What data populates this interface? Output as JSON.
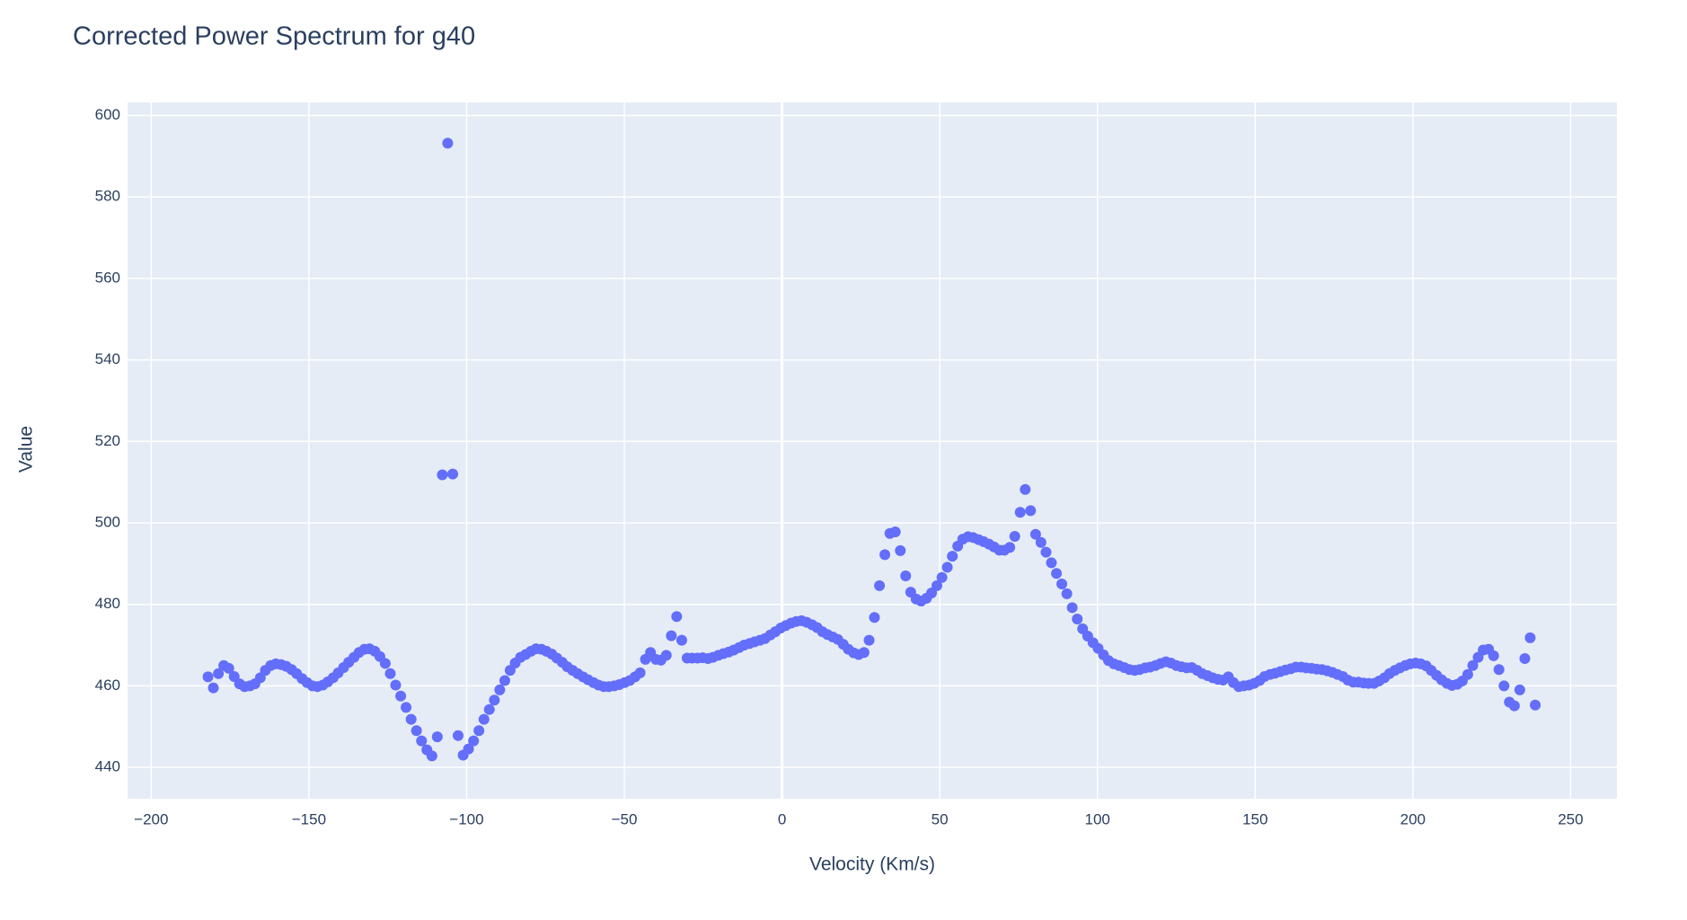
{
  "chart_data": {
    "type": "scatter",
    "title": "Corrected Power Spectrum for g40",
    "x_label": "Velocity (Km/s)",
    "y_label": "Value",
    "color": "#636efa",
    "grid": true,
    "xlim": [
      -207.5,
      264.7
    ],
    "ylim": [
      432.3,
      603.2
    ],
    "xticks": [
      {
        "value": -200,
        "label": "−200"
      },
      {
        "value": -150,
        "label": "−150"
      },
      {
        "value": -100,
        "label": "−100"
      },
      {
        "value": -50,
        "label": "−50"
      },
      0,
      50,
      100,
      150,
      200,
      250
    ],
    "yticks": [
      440,
      460,
      480,
      500,
      520,
      540,
      560,
      580,
      600
    ],
    "x": [
      -182,
      -180.3,
      -178.7,
      -177,
      -175.4,
      -173.7,
      -172,
      -170.4,
      -168.7,
      -167.1,
      -165.4,
      -163.8,
      -162.1,
      -160.5,
      -158.8,
      -157.2,
      -155.5,
      -153.9,
      -152.2,
      -150.6,
      -148.9,
      -147.3,
      -145.6,
      -144,
      -142.3,
      -140.7,
      -139,
      -137.4,
      -135.7,
      -134.1,
      -132.4,
      -130.8,
      -129.1,
      -127.5,
      -125.8,
      -124.2,
      -122.5,
      -120.9,
      -119.2,
      -117.6,
      -115.9,
      -114.3,
      -112.6,
      -111,
      -109.3,
      -107.7,
      -106,
      -104.4,
      -102.7,
      -101.1,
      -99.4,
      -97.8,
      -96.1,
      -94.5,
      -92.8,
      -91.2,
      -89.5,
      -87.9,
      -86.2,
      -84.6,
      -82.9,
      -81.3,
      -79.6,
      -78,
      -76.3,
      -74.7,
      -73,
      -71.4,
      -69.7,
      -68.1,
      -66.4,
      -64.8,
      -63.1,
      -61.5,
      -59.8,
      -58.2,
      -56.5,
      -54.9,
      -53.2,
      -51.6,
      -49.9,
      -48.3,
      -46.6,
      -45,
      -43.3,
      -41.7,
      -40,
      -38.4,
      -36.7,
      -35.1,
      -33.4,
      -31.8,
      -30.1,
      -28.5,
      -26.8,
      -25.2,
      -23.5,
      -21.9,
      -20.2,
      -18.6,
      -16.9,
      -15.3,
      -13.6,
      -12,
      -10.3,
      -8.7,
      -7,
      -5.4,
      -3.7,
      -2.1,
      -0.4,
      1.2,
      2.9,
      4.5,
      6.2,
      7.8,
      9.5,
      11.1,
      12.8,
      14.4,
      16.1,
      17.7,
      19.4,
      21,
      22.7,
      24.3,
      26,
      27.6,
      29.3,
      30.9,
      32.6,
      34.2,
      35.9,
      37.5,
      39.2,
      40.8,
      42.5,
      44.1,
      45.8,
      47.4,
      49.1,
      50.7,
      52.4,
      54,
      55.7,
      57.3,
      59,
      60.6,
      62.3,
      63.9,
      65.6,
      67.2,
      68.9,
      70.5,
      72.2,
      73.8,
      75.5,
      77.1,
      78.8,
      80.4,
      82.1,
      83.7,
      85.4,
      87,
      88.7,
      90.3,
      92,
      93.6,
      95.3,
      96.9,
      98.6,
      100.2,
      101.9,
      103.5,
      105.2,
      106.8,
      108.5,
      110.1,
      111.8,
      113.4,
      115.1,
      116.7,
      118.4,
      120,
      121.7,
      123.3,
      125,
      126.6,
      128.3,
      129.9,
      131.6,
      133.2,
      134.9,
      136.5,
      138.2,
      139.8,
      141.5,
      143.1,
      144.8,
      146.4,
      148.1,
      149.7,
      151.4,
      153,
      154.7,
      156.3,
      158,
      159.6,
      161.3,
      162.9,
      164.6,
      166.2,
      167.9,
      169.5,
      171.2,
      172.8,
      174.5,
      176.1,
      177.8,
      179.4,
      181.1,
      182.7,
      184.4,
      186,
      187.7,
      189.3,
      191,
      192.6,
      194.3,
      195.9,
      197.6,
      199.2,
      200.9,
      202.5,
      204.2,
      205.8,
      207.5,
      209.1,
      210.8,
      212.4,
      214.1,
      215.7,
      217.4,
      219,
      220.7,
      222.3,
      224,
      225.6,
      227.3,
      228.9,
      230.6,
      232.2,
      233.9,
      235.5,
      237.2,
      238.8
    ],
    "values": [
      462.2,
      459.5,
      463,
      465,
      464.3,
      462.3,
      460.5,
      459.8,
      460,
      460.5,
      462,
      463.8,
      465,
      465.4,
      465.2,
      464.8,
      464,
      463,
      461.8,
      460.8,
      460,
      459.8,
      460.2,
      461,
      462,
      463.2,
      464.5,
      465.8,
      467,
      468.2,
      469,
      469.1,
      468.5,
      467.2,
      465.5,
      463,
      460.2,
      457.5,
      454.7,
      451.8,
      449,
      446.5,
      444.3,
      442.8,
      447.5,
      511.8,
      593.2,
      512,
      447.8,
      443,
      444.5,
      446.5,
      449,
      451.8,
      454.2,
      456.5,
      459,
      461.3,
      463.8,
      465.6,
      467,
      467.7,
      468.5,
      469.1,
      469,
      468.5,
      467.8,
      466.8,
      465.8,
      464.7,
      463.8,
      463,
      462.2,
      461.5,
      460.8,
      460.2,
      459.8,
      459.8,
      460,
      460.3,
      460.8,
      461.3,
      462.2,
      463.2,
      466.5,
      468.2,
      466.5,
      466.3,
      467.5,
      472.3,
      477,
      471.2,
      466.8,
      466.8,
      466.8,
      466.9,
      466.7,
      467,
      467.5,
      467.9,
      468.3,
      468.8,
      469.4,
      470,
      470.4,
      470.8,
      471.2,
      471.6,
      472.5,
      473.3,
      474.2,
      474.8,
      475.4,
      475.8,
      476,
      475.6,
      475,
      474.3,
      473.3,
      472.6,
      472,
      471.4,
      470.2,
      469,
      468.1,
      467.7,
      468.2,
      471.2,
      476.8,
      484.6,
      492.2,
      497.4,
      497.8,
      493.2,
      487,
      483,
      481.3,
      480.8,
      481.5,
      482.8,
      484.6,
      486.6,
      489.1,
      491.8,
      494.3,
      496,
      496.6,
      496.4,
      495.9,
      495.4,
      494.8,
      494.1,
      493.3,
      493.3,
      494,
      496.7,
      502.6,
      508.2,
      503,
      497.2,
      495.2,
      492.8,
      490.2,
      487.6,
      485,
      482.6,
      479.2,
      476.4,
      474,
      472.2,
      470.6,
      469.2,
      467.6,
      466.2,
      465.4,
      465,
      464.5,
      464,
      463.8,
      464,
      464.4,
      464.6,
      465,
      465.5,
      465.9,
      465.6,
      465,
      464.7,
      464.4,
      464.5,
      463.8,
      463,
      462.5,
      462,
      461.6,
      461.4,
      462.2,
      460.8,
      459.8,
      460,
      460.2,
      460.6,
      461.3,
      462.3,
      462.8,
      463.1,
      463.5,
      463.9,
      464.2,
      464.6,
      464.6,
      464.4,
      464.3,
      464.1,
      464,
      463.7,
      463.3,
      462.8,
      462.3,
      461.4,
      460.9,
      460.9,
      460.7,
      460.6,
      460.6,
      461.2,
      462,
      463,
      463.8,
      464.4,
      465,
      465.4,
      465.6,
      465.4,
      464.9,
      463.8,
      462.6,
      461.5,
      460.6,
      460.1,
      460.4,
      461.2,
      462.8,
      465,
      467,
      468.8,
      469,
      467.4,
      464,
      460,
      456,
      455.1,
      459,
      466.7,
      471.8,
      455.3
    ]
  }
}
